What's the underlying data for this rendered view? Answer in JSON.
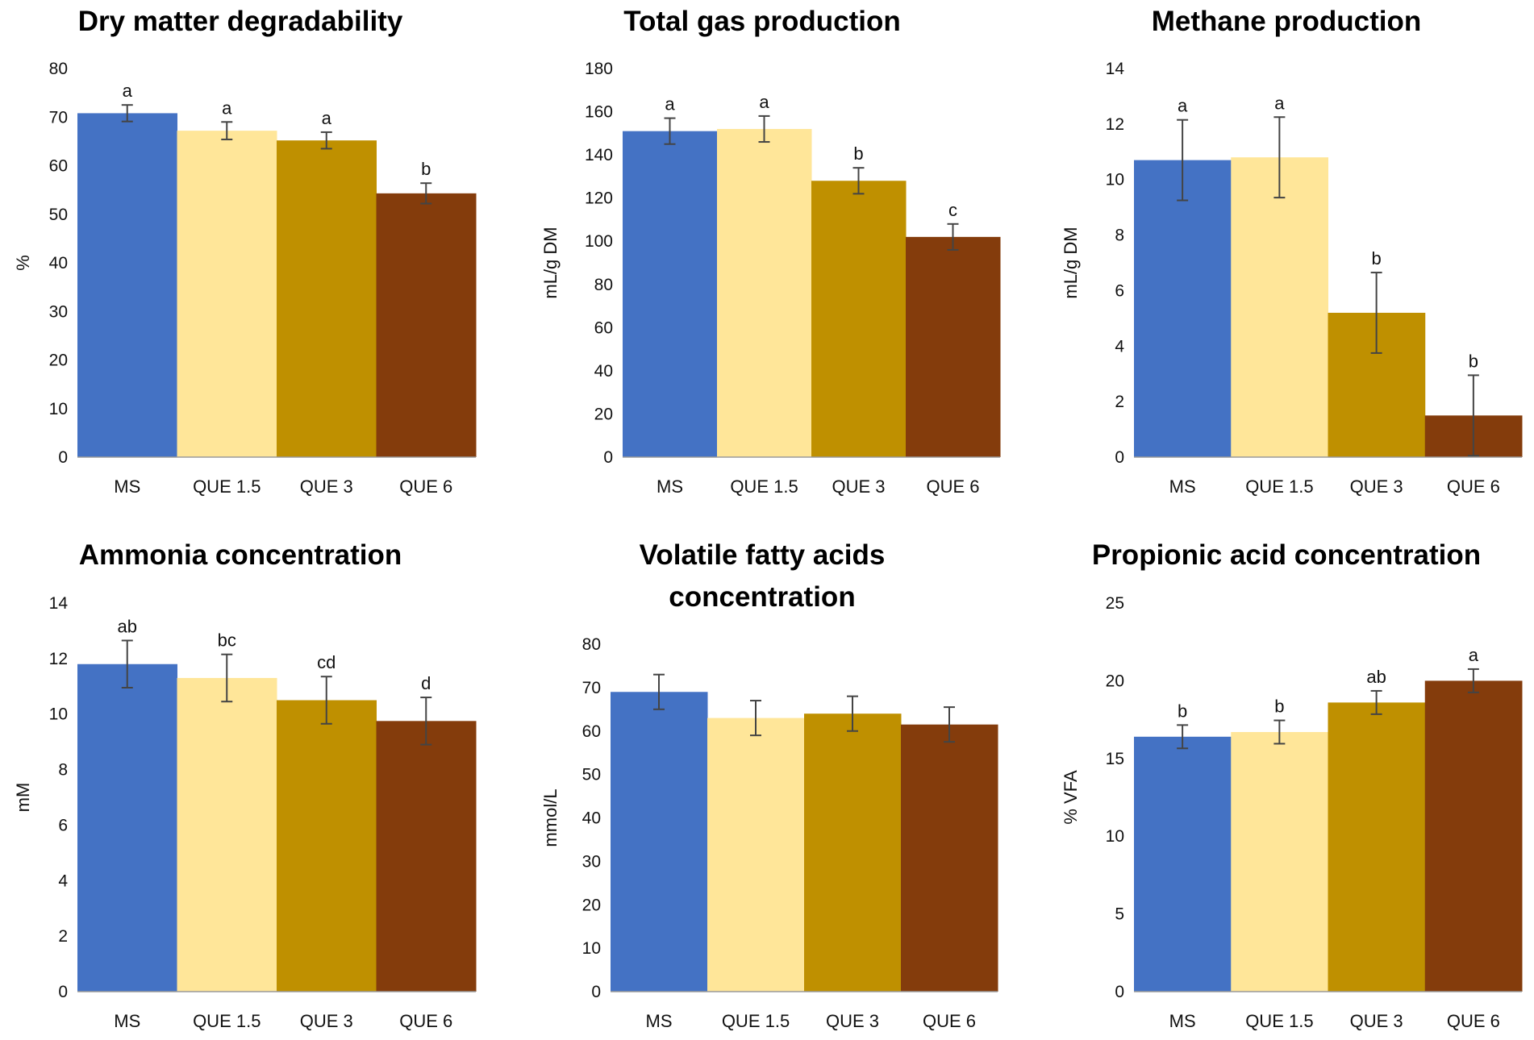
{
  "colors": {
    "MS": "#4472c4",
    "QUE 1.5": "#ffe699",
    "QUE 3": "#bf9000",
    "QUE 6": "#843c0c"
  },
  "chart_data": [
    {
      "type": "bar",
      "title": "Dry matter degradability",
      "ylabel": "%",
      "xlabel": "",
      "categories": [
        "MS",
        "QUE 1.5",
        "QUE 3",
        "QUE 6"
      ],
      "values": [
        70.8,
        67.2,
        65.2,
        54.3
      ],
      "errors": [
        1.7,
        1.8,
        1.7,
        2.1
      ],
      "significance": [
        "a",
        "a",
        "a",
        "b"
      ],
      "ylim": [
        0,
        80
      ],
      "yticks": [
        0,
        10,
        20,
        30,
        40,
        50,
        60,
        70,
        80
      ]
    },
    {
      "type": "bar",
      "title": "Total gas production",
      "ylabel": "mL/g DM",
      "xlabel": "",
      "categories": [
        "MS",
        "QUE 1.5",
        "QUE 3",
        "QUE 6"
      ],
      "values": [
        151,
        152,
        128,
        102
      ],
      "errors": [
        6,
        6,
        6,
        6
      ],
      "significance": [
        "a",
        "a",
        "b",
        "c"
      ],
      "ylim": [
        0,
        180
      ],
      "yticks": [
        0,
        20,
        40,
        60,
        80,
        100,
        120,
        140,
        160,
        180
      ]
    },
    {
      "type": "bar",
      "title": "Methane production",
      "ylabel": "mL/g DM",
      "xlabel": "",
      "categories": [
        "MS",
        "QUE 1.5",
        "QUE 3",
        "QUE 6"
      ],
      "values": [
        10.7,
        10.8,
        5.2,
        1.5
      ],
      "errors": [
        1.45,
        1.45,
        1.45,
        1.45
      ],
      "significance": [
        "a",
        "a",
        "b",
        "b"
      ],
      "ylim": [
        0,
        14
      ],
      "yticks": [
        0,
        2,
        4,
        6,
        8,
        10,
        12,
        14
      ]
    },
    {
      "type": "bar",
      "title": "Ammonia concentration",
      "ylabel": "mM",
      "xlabel": "",
      "categories": [
        "MS",
        "QUE 1.5",
        "QUE 3",
        "QUE 6"
      ],
      "values": [
        11.8,
        11.3,
        10.5,
        9.75
      ],
      "errors": [
        0.85,
        0.85,
        0.85,
        0.85
      ],
      "significance": [
        "ab",
        "bc",
        "cd",
        "d"
      ],
      "ylim": [
        0,
        14
      ],
      "yticks": [
        0,
        2,
        4,
        6,
        8,
        10,
        12,
        14
      ]
    },
    {
      "type": "bar",
      "title": "Volatile fatty acids concentration",
      "title_lines": [
        "Volatile fatty acids",
        "concentration"
      ],
      "ylabel": "mmol/L",
      "xlabel": "",
      "categories": [
        "MS",
        "QUE 1.5",
        "QUE 3",
        "QUE 6"
      ],
      "values": [
        69,
        63,
        64,
        61.5
      ],
      "errors": [
        4,
        4,
        4,
        4
      ],
      "significance": [
        "",
        "",
        "",
        ""
      ],
      "ylim": [
        0,
        80
      ],
      "yticks": [
        0,
        10,
        20,
        30,
        40,
        50,
        60,
        70,
        80
      ]
    },
    {
      "type": "bar",
      "title": "Propionic acid concentration",
      "ylabel": "% VFA",
      "xlabel": "",
      "categories": [
        "MS",
        "QUE 1.5",
        "QUE 3",
        "QUE 6"
      ],
      "values": [
        16.4,
        16.7,
        18.6,
        20.0
      ],
      "errors": [
        0.75,
        0.75,
        0.75,
        0.75
      ],
      "significance": [
        "b",
        "b",
        "ab",
        "a"
      ],
      "ylim": [
        0,
        25
      ],
      "yticks": [
        0,
        5,
        10,
        15,
        20,
        25
      ]
    }
  ]
}
